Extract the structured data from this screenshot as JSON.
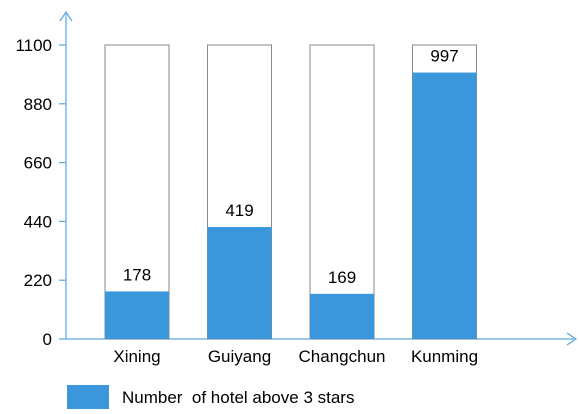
{
  "chart_data": {
    "type": "bar",
    "style": "stacked-capacity",
    "categories": [
      "Xining",
      "Guiyang",
      "Changchun",
      "Kunming"
    ],
    "series": [
      {
        "name": "Number  of hotel above 3 stars",
        "values": [
          178,
          419,
          169,
          997
        ],
        "color": "#3b97db"
      }
    ],
    "data_labels": [
      "178",
      "419",
      "169",
      "997"
    ],
    "capacity": 1100,
    "ylim": [
      0,
      1100
    ],
    "yticks": [
      0,
      220,
      440,
      660,
      880,
      1100
    ],
    "ytick_labels": [
      "0",
      "220",
      "440",
      "660",
      "880",
      "1100"
    ],
    "axis_color": "#5aa7de",
    "legend": {
      "placement": "bottom-left",
      "label": "Number  of hotel above 3 stars"
    },
    "grid": false
  }
}
